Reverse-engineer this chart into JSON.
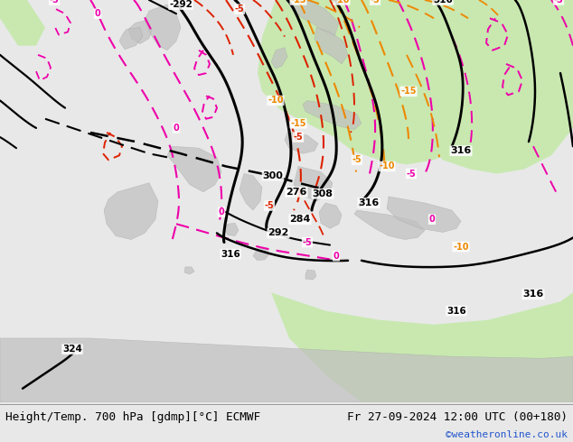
{
  "title_left": "Height/Temp. 700 hPa [gdmp][°C] ECMWF",
  "title_right": "Fr 27-09-2024 12:00 UTC (00+180)",
  "watermark": "©weatheronline.co.uk",
  "bg_color": "#e8e8e8",
  "map_bg": "#f0f0f0",
  "figsize": [
    6.34,
    4.9
  ],
  "dpi": 100,
  "font_size_title": 9.2,
  "font_size_watermark": 8,
  "watermark_color": "#2255cc",
  "title_color": "#000000"
}
